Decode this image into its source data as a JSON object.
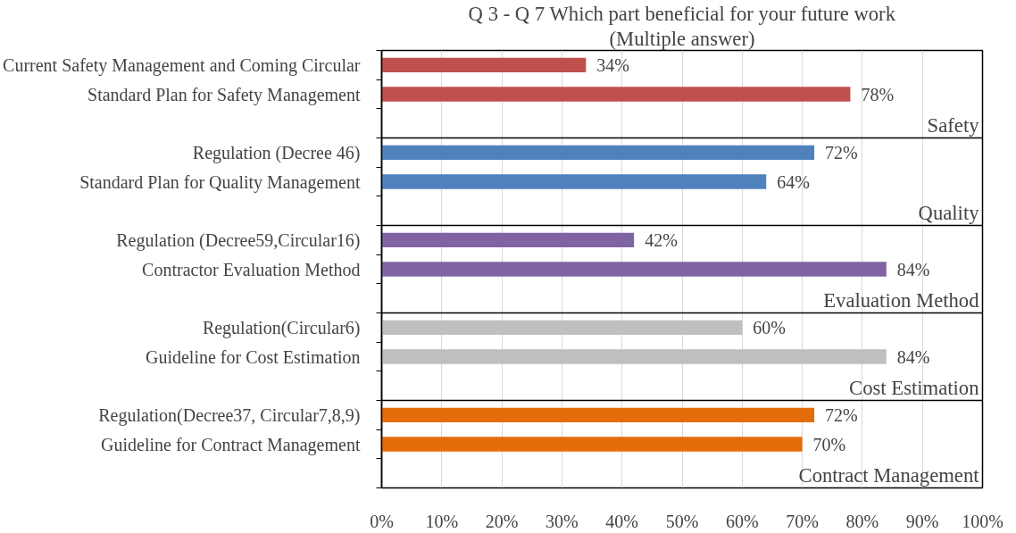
{
  "chart_data": {
    "type": "bar",
    "orientation": "horizontal",
    "title": "Q 3 - Q 7 Which part beneficial for your future work",
    "subtitle": "(Multiple answer)",
    "categories": [
      "Current Safety Management and Coming Circular",
      "Standard Plan for Safety Management",
      null,
      "Regulation (Decree 46)",
      "Standard Plan for Quality Management",
      null,
      "Regulation (Decree59,Circular16)",
      "Contractor Evaluation Method",
      null,
      "Regulation(Circular6)",
      "Guideline for Cost Estimation",
      null,
      "Regulation(Decree37, Circular7,8,9)",
      "Guideline for Contract Management",
      null
    ],
    "series": [
      {
        "color": "#c0504d",
        "values": [
          34,
          78,
          null,
          null,
          null,
          null,
          null,
          null,
          null,
          null,
          null,
          null,
          null,
          null,
          null
        ],
        "value_labels": [
          "34%",
          "78%",
          null,
          null,
          null,
          null,
          null,
          null,
          null,
          null,
          null,
          null,
          null,
          null,
          null
        ]
      },
      {
        "color": "#4f81bd",
        "values": [
          null,
          null,
          null,
          72,
          64,
          null,
          null,
          null,
          null,
          null,
          null,
          null,
          null,
          null,
          null
        ],
        "value_labels": [
          null,
          null,
          null,
          "72%",
          "64%",
          null,
          null,
          null,
          null,
          null,
          null,
          null,
          null,
          null,
          null
        ]
      },
      {
        "color": "#8064a2",
        "values": [
          null,
          null,
          null,
          null,
          null,
          null,
          42,
          84,
          null,
          null,
          null,
          null,
          null,
          null,
          null
        ],
        "value_labels": [
          null,
          null,
          null,
          null,
          null,
          null,
          "42%",
          "84%",
          null,
          null,
          null,
          null,
          null,
          null,
          null
        ]
      },
      {
        "color": "#bfbfbf",
        "values": [
          null,
          null,
          null,
          null,
          null,
          null,
          null,
          null,
          null,
          60,
          84,
          null,
          null,
          null,
          null
        ],
        "value_labels": [
          null,
          null,
          null,
          null,
          null,
          null,
          null,
          null,
          null,
          "60%",
          "84%",
          null,
          null,
          null,
          null
        ]
      },
      {
        "color": "#e46c0a",
        "values": [
          null,
          null,
          null,
          null,
          null,
          null,
          null,
          null,
          null,
          null,
          null,
          null,
          72,
          70,
          null
        ],
        "value_labels": [
          null,
          null,
          null,
          null,
          null,
          null,
          null,
          null,
          null,
          null,
          null,
          null,
          "72%",
          "70%",
          null
        ]
      }
    ],
    "xlim": [
      0,
      100
    ],
    "xticks": [
      {
        "value": 0,
        "label": "0%"
      },
      {
        "value": 10,
        "label": "10%"
      },
      {
        "value": 20,
        "label": "20%"
      },
      {
        "value": 30,
        "label": "30%"
      },
      {
        "value": 40,
        "label": "40%"
      },
      {
        "value": 50,
        "label": "50%"
      },
      {
        "value": 60,
        "label": "60%"
      },
      {
        "value": 70,
        "label": "70%"
      },
      {
        "value": 80,
        "label": "80%"
      },
      {
        "value": 90,
        "label": "90%"
      },
      {
        "value": 100,
        "label": "100%"
      }
    ],
    "annotations": [
      "Safety",
      "Quality",
      "Evaluation Method",
      "Cost Estimation",
      "Contract Management"
    ],
    "grid": "x"
  }
}
